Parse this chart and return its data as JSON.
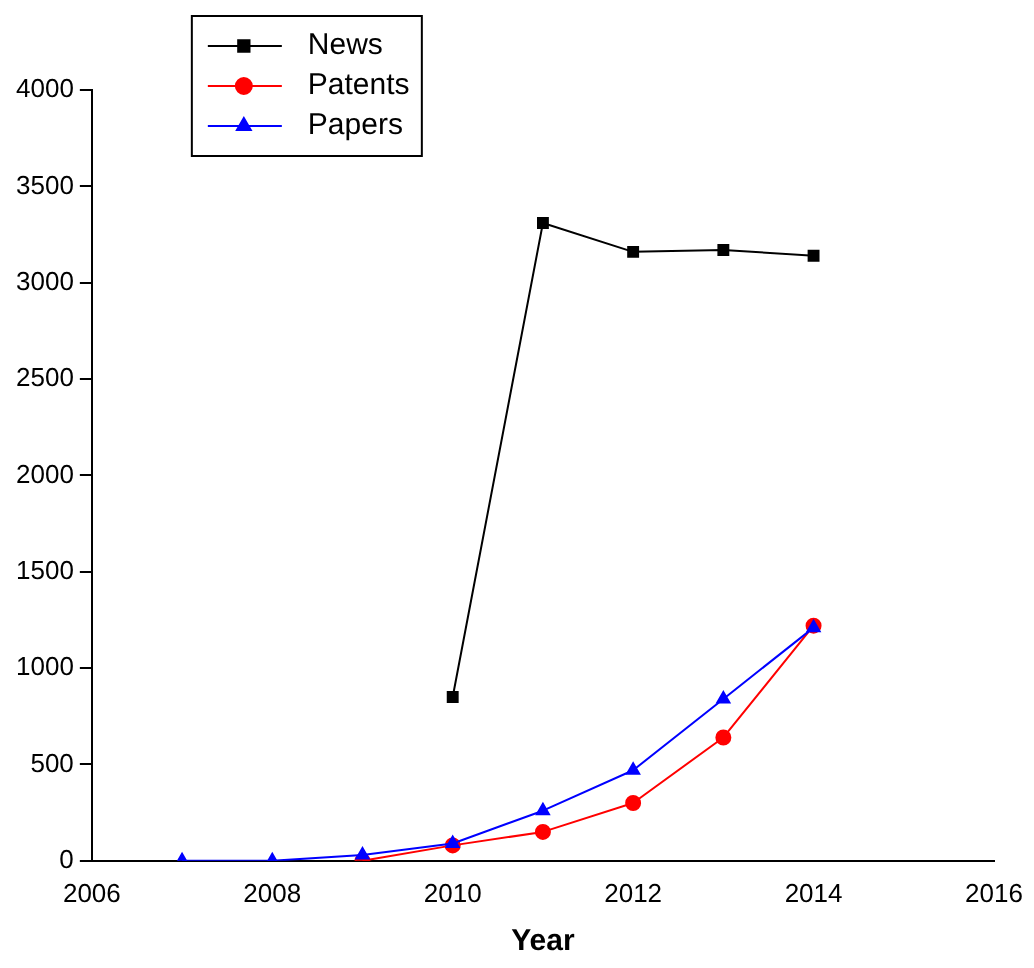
{
  "chart_data": {
    "type": "line",
    "xlabel": "Year",
    "x": [
      2007,
      2008,
      2009,
      2010,
      2011,
      2012,
      2013,
      2014
    ],
    "series": [
      {
        "name": "News",
        "color": "#000000",
        "marker": "square",
        "values": [
          null,
          null,
          null,
          850,
          3310,
          3160,
          3170,
          3140
        ]
      },
      {
        "name": "Patents",
        "color": "#ff0000",
        "marker": "circle",
        "values": [
          null,
          null,
          0,
          80,
          150,
          300,
          640,
          1220
        ]
      },
      {
        "name": "Papers",
        "color": "#0000ff",
        "marker": "triangle",
        "values": [
          0,
          0,
          30,
          90,
          260,
          470,
          840,
          1210
        ]
      }
    ],
    "xlim": [
      2006,
      2016
    ],
    "xticks": [
      2006,
      2008,
      2010,
      2012,
      2014,
      2016
    ],
    "ylim": [
      0,
      4000
    ],
    "yticks": [
      0,
      500,
      1000,
      1500,
      2000,
      2500,
      3000,
      3500,
      4000
    ],
    "grid": false,
    "legend": "top left",
    "line_style": "solid"
  }
}
